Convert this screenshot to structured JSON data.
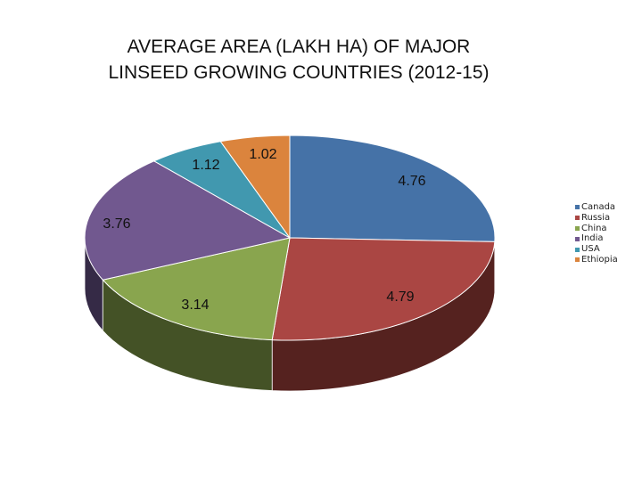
{
  "chart_data": {
    "type": "pie",
    "title_lines": [
      "AVERAGE AREA (LAKH HA) OF MAJOR",
      "LINSEED GROWING COUNTRIES (2012-15)"
    ],
    "categories": [
      "Canada",
      "Russia",
      "China",
      "India",
      "USA",
      "Ethiopia"
    ],
    "values": [
      4.76,
      4.79,
      3.14,
      3.76,
      1.12,
      1.02
    ],
    "data_labels": [
      "4.76",
      "4.79",
      "3.14",
      "3.76",
      "1.12",
      "1.02"
    ],
    "colors": [
      "#4572a7",
      "#aa4643",
      "#89a54e",
      "#71588f",
      "#4198af",
      "#db843d"
    ],
    "side_colors": [
      "#2d4b70",
      "#55221f",
      "#445226",
      "#352a46",
      "#1f4a56",
      "#6b3f1b"
    ],
    "legend_position": "right",
    "style": "3d-pie",
    "start_angle_deg": -90
  }
}
